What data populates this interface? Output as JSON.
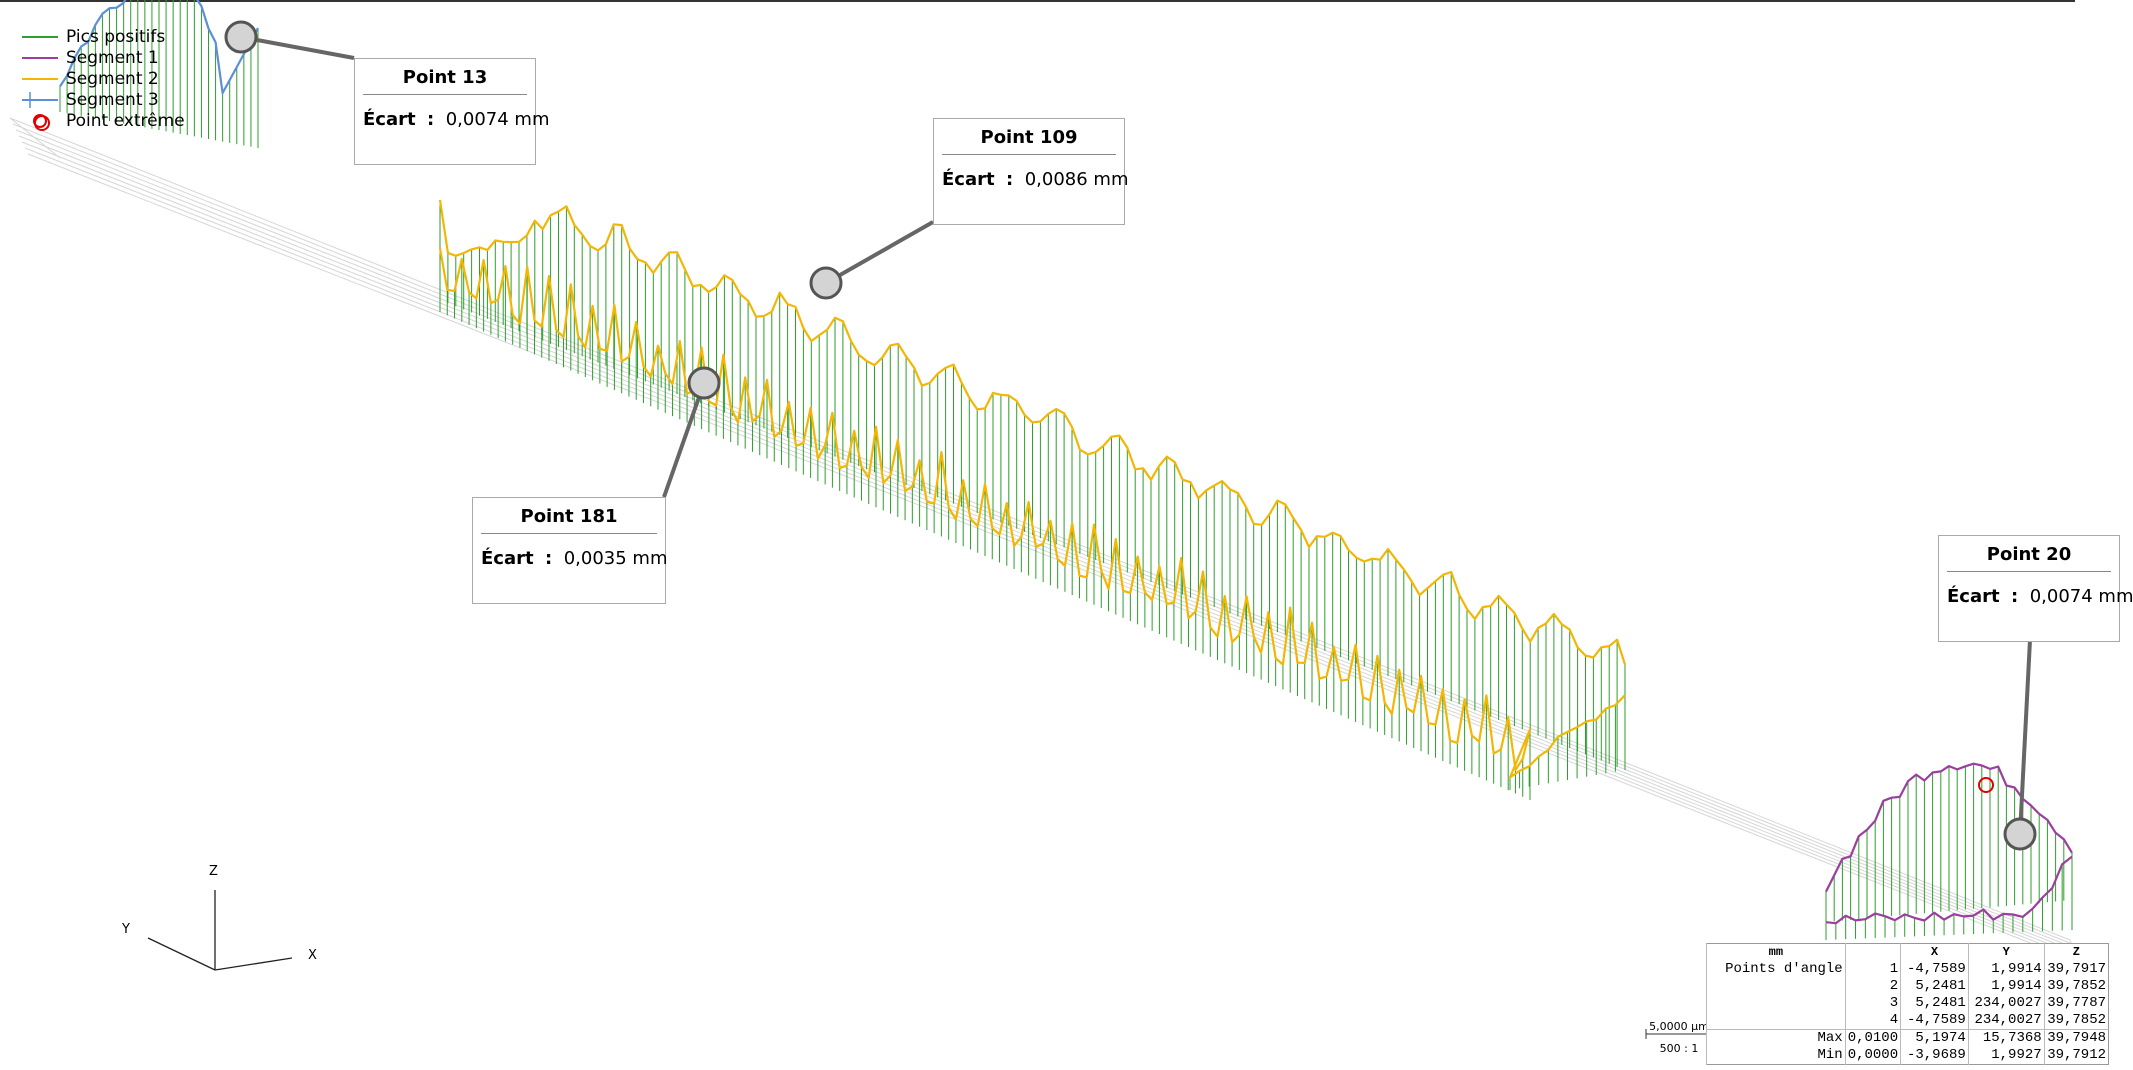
{
  "legend": [
    {
      "label": "Pics positifs",
      "color": "#2e9e2e",
      "icon": "line"
    },
    {
      "label": "Segment 1",
      "color": "#9b3f9e",
      "icon": "line"
    },
    {
      "label": "Segment 2",
      "color": "#f2b705",
      "icon": "line"
    },
    {
      "label": "Segment 3",
      "color": "#5b8fd6",
      "icon": "line-with-ticks"
    },
    {
      "label": "Point extrême",
      "color": "#e00000",
      "icon": "circle"
    }
  ],
  "callouts": [
    {
      "title": "Point 13",
      "label": "Écart",
      "sep": ":",
      "value": "0,0074 mm"
    },
    {
      "title": "Point 109",
      "label": "Écart",
      "sep": ":",
      "value": "0,0086 mm"
    },
    {
      "title": "Point 181",
      "label": "Écart",
      "sep": ":",
      "value": "0,0035 mm"
    },
    {
      "title": "Point 20",
      "label": "Écart",
      "sep": ":",
      "value": "0,0074 mm"
    }
  ],
  "axes": {
    "z": "Z",
    "y": "Y",
    "x": "X"
  },
  "scale": {
    "top": "5,0000 µm",
    "bottom": "500 : 1"
  },
  "table": {
    "headers": [
      "mm",
      "",
      "X",
      "Y",
      "Z"
    ],
    "rows": [
      [
        "Points d'angle",
        "1",
        "-4,7589",
        "1,9914",
        "39,7917"
      ],
      [
        "",
        "2",
        "5,2481",
        "1,9914",
        "39,7852"
      ],
      [
        "",
        "3",
        "5,2481",
        "234,0027",
        "39,7787"
      ],
      [
        "",
        "4",
        "-4,7589",
        "234,0027",
        "39,7852"
      ],
      [
        "Max",
        "0,0100",
        "5,1974",
        "15,7368",
        "39,7948"
      ],
      [
        "Min",
        "0,0000",
        "-3,9689",
        "1,9927",
        "39,7912"
      ]
    ]
  },
  "chart_data": {
    "type": "line",
    "title": "",
    "series": [
      {
        "name": "Segment 2",
        "color": "#f2b705"
      },
      {
        "name": "Segment 1",
        "color": "#9b3f9e"
      },
      {
        "name": "Segment 3",
        "color": "#5b8fd6"
      }
    ],
    "stems": {
      "name": "Pics positifs",
      "color": "#2e9e2e"
    },
    "extreme_markers": {
      "name": "Point extrême",
      "color": "#e00000"
    },
    "annotated_points": [
      {
        "point": 13,
        "ecart_mm": 0.0074
      },
      {
        "point": 109,
        "ecart_mm": 0.0086
      },
      {
        "point": 181,
        "ecart_mm": 0.0035
      },
      {
        "point": 20,
        "ecart_mm": 0.0074
      }
    ],
    "max_deviation_mm": 0.01,
    "min_deviation_mm": 0.0,
    "grid": true
  }
}
